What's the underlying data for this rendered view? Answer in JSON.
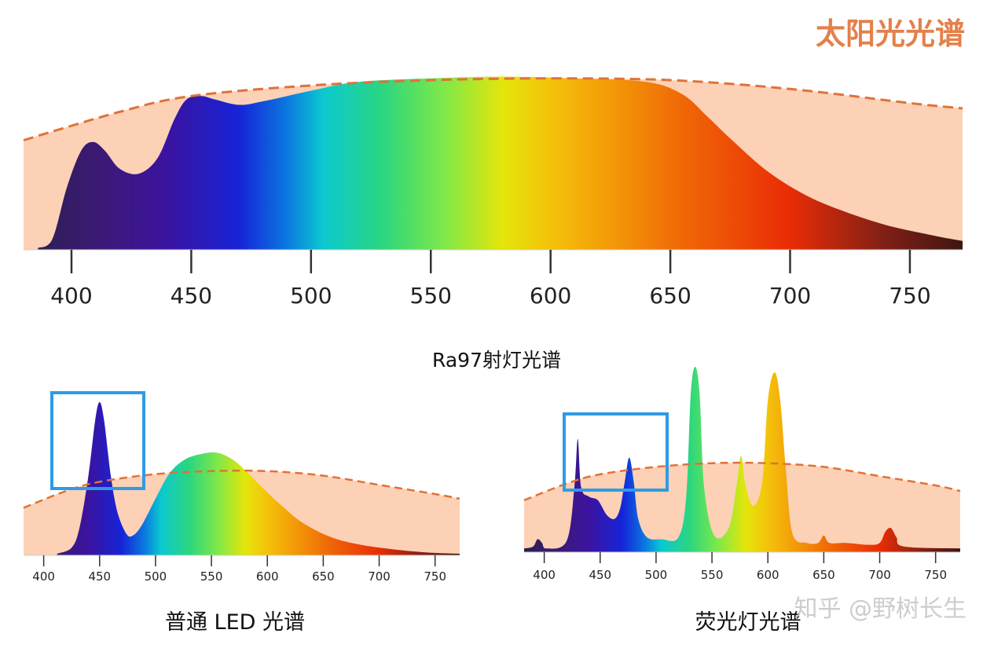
{
  "chart_data": [
    {
      "type": "area",
      "title": "太阳光光谱",
      "caption": "Ra97射灯光谱",
      "xlabel": "",
      "ylabel": "",
      "xlim": [
        380,
        772
      ],
      "ylim": [
        0,
        1
      ],
      "x_ticks": [
        400,
        450,
        500,
        550,
        600,
        650,
        700,
        750
      ],
      "reference_curve": {
        "style": "dashed",
        "color": "#e07238",
        "points": [
          [
            380,
            0.62
          ],
          [
            420,
            0.78
          ],
          [
            450,
            0.87
          ],
          [
            500,
            0.93
          ],
          [
            550,
            0.96
          ],
          [
            600,
            0.97
          ],
          [
            650,
            0.96
          ],
          [
            700,
            0.91
          ],
          [
            750,
            0.83
          ],
          [
            772,
            0.8
          ]
        ]
      },
      "series": [
        {
          "values": [
            [
              386,
              0.01
            ],
            [
              392,
              0.06
            ],
            [
              398,
              0.35
            ],
            [
              404,
              0.56
            ],
            [
              409,
              0.61
            ],
            [
              414,
              0.56
            ],
            [
              420,
              0.46
            ],
            [
              428,
              0.43
            ],
            [
              436,
              0.52
            ],
            [
              443,
              0.74
            ],
            [
              448,
              0.85
            ],
            [
              454,
              0.87
            ],
            [
              460,
              0.85
            ],
            [
              470,
              0.82
            ],
            [
              480,
              0.84
            ],
            [
              500,
              0.9
            ],
            [
              520,
              0.95
            ],
            [
              550,
              0.97
            ],
            [
              580,
              0.98
            ],
            [
              610,
              0.97
            ],
            [
              640,
              0.95
            ],
            [
              655,
              0.88
            ],
            [
              665,
              0.76
            ],
            [
              675,
              0.63
            ],
            [
              690,
              0.45
            ],
            [
              705,
              0.32
            ],
            [
              720,
              0.23
            ],
            [
              740,
              0.14
            ],
            [
              760,
              0.08
            ],
            [
              772,
              0.05
            ]
          ]
        }
      ]
    },
    {
      "type": "area",
      "caption": "普通 LED 光谱",
      "xlim": [
        382,
        772
      ],
      "ylim": [
        0,
        1
      ],
      "x_ticks": [
        400,
        450,
        500,
        550,
        600,
        650,
        700,
        750
      ],
      "reference_curve": {
        "style": "dashed",
        "color": "#e07238",
        "points": [
          [
            382,
            0.31
          ],
          [
            420,
            0.42
          ],
          [
            450,
            0.48
          ],
          [
            500,
            0.53
          ],
          [
            550,
            0.55
          ],
          [
            600,
            0.55
          ],
          [
            650,
            0.52
          ],
          [
            700,
            0.46
          ],
          [
            750,
            0.4
          ],
          [
            772,
            0.37
          ]
        ]
      },
      "series": [
        {
          "values": [
            [
              412,
              0.01
            ],
            [
              425,
              0.05
            ],
            [
              432,
              0.18
            ],
            [
              440,
              0.52
            ],
            [
              446,
              0.88
            ],
            [
              450,
              1.0
            ],
            [
              454,
              0.88
            ],
            [
              460,
              0.52
            ],
            [
              466,
              0.28
            ],
            [
              474,
              0.14
            ],
            [
              480,
              0.13
            ],
            [
              488,
              0.2
            ],
            [
              500,
              0.37
            ],
            [
              512,
              0.53
            ],
            [
              525,
              0.62
            ],
            [
              540,
              0.66
            ],
            [
              555,
              0.67
            ],
            [
              570,
              0.62
            ],
            [
              585,
              0.52
            ],
            [
              600,
              0.41
            ],
            [
              615,
              0.31
            ],
            [
              630,
              0.22
            ],
            [
              650,
              0.14
            ],
            [
              670,
              0.09
            ],
            [
              700,
              0.05
            ],
            [
              740,
              0.02
            ],
            [
              772,
              0.01
            ]
          ]
        }
      ]
    },
    {
      "type": "area",
      "caption": "荧光灯光谱",
      "xlim": [
        382,
        772
      ],
      "ylim": [
        0,
        1
      ],
      "x_ticks": [
        400,
        450,
        500,
        550,
        600,
        650,
        700,
        750
      ],
      "reference_curve": {
        "style": "dashed",
        "color": "#e07238",
        "points": [
          [
            382,
            0.28
          ],
          [
            420,
            0.37
          ],
          [
            450,
            0.42
          ],
          [
            500,
            0.46
          ],
          [
            550,
            0.48
          ],
          [
            600,
            0.48
          ],
          [
            650,
            0.46
          ],
          [
            700,
            0.41
          ],
          [
            750,
            0.36
          ],
          [
            772,
            0.33
          ]
        ]
      },
      "series": [
        {
          "values": [
            [
              382,
              0.02
            ],
            [
              390,
              0.03
            ],
            [
              394,
              0.07
            ],
            [
              398,
              0.05
            ],
            [
              402,
              0.02
            ],
            [
              420,
              0.06
            ],
            [
              427,
              0.35
            ],
            [
              430,
              0.61
            ],
            [
              433,
              0.35
            ],
            [
              440,
              0.3
            ],
            [
              448,
              0.28
            ],
            [
              456,
              0.2
            ],
            [
              463,
              0.18
            ],
            [
              468,
              0.24
            ],
            [
              472,
              0.38
            ],
            [
              476,
              0.51
            ],
            [
              480,
              0.38
            ],
            [
              484,
              0.18
            ],
            [
              492,
              0.08
            ],
            [
              505,
              0.07
            ],
            [
              520,
              0.08
            ],
            [
              527,
              0.3
            ],
            [
              531,
              0.85
            ],
            [
              535,
              1.0
            ],
            [
              539,
              0.85
            ],
            [
              543,
              0.35
            ],
            [
              552,
              0.09
            ],
            [
              565,
              0.13
            ],
            [
              572,
              0.36
            ],
            [
              576,
              0.52
            ],
            [
              580,
              0.36
            ],
            [
              587,
              0.25
            ],
            [
              595,
              0.38
            ],
            [
              600,
              0.82
            ],
            [
              606,
              0.97
            ],
            [
              611,
              0.82
            ],
            [
              616,
              0.45
            ],
            [
              622,
              0.1
            ],
            [
              635,
              0.05
            ],
            [
              645,
              0.05
            ],
            [
              650,
              0.09
            ],
            [
              655,
              0.05
            ],
            [
              670,
              0.05
            ],
            [
              690,
              0.04
            ],
            [
              700,
              0.05
            ],
            [
              705,
              0.11
            ],
            [
              710,
              0.13
            ],
            [
              715,
              0.08
            ],
            [
              722,
              0.03
            ],
            [
              772,
              0.02
            ]
          ]
        }
      ]
    }
  ],
  "watermark": "知乎 @野树长生",
  "highlight_color": "#2e9be6"
}
